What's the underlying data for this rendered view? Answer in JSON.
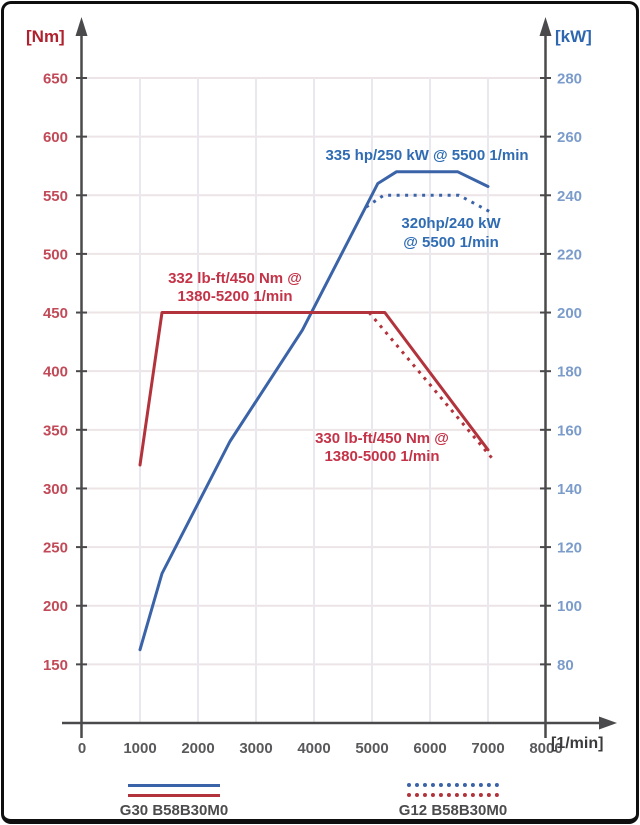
{
  "chart_data": {
    "type": "line",
    "title": "",
    "x_axis": {
      "label": "[1/min]",
      "min": 0,
      "max": 8000,
      "ticks": [
        0,
        1000,
        2000,
        3000,
        4000,
        5000,
        6000,
        7000,
        8000
      ]
    },
    "y_left": {
      "label": "[Nm]",
      "min": 100,
      "max": 650,
      "ticks": [
        650,
        600,
        550,
        500,
        450,
        400,
        350,
        300,
        250,
        200,
        150
      ]
    },
    "y_right": {
      "label": "[kW]",
      "min": 60,
      "max": 280,
      "ticks": [
        280,
        260,
        240,
        220,
        200,
        180,
        160,
        140,
        120,
        100,
        80
      ]
    },
    "grid": true,
    "legend_position": "bottom",
    "series": [
      {
        "name": "G30 B58B30M0 power (kW)",
        "axis": "right",
        "line": "solid",
        "color": "#3a63a8",
        "points": [
          [
            1000,
            85
          ],
          [
            1380,
            111
          ],
          [
            2550,
            156
          ],
          [
            3800,
            194
          ],
          [
            5100,
            244
          ],
          [
            5420,
            248
          ],
          [
            6480,
            248
          ],
          [
            7000,
            243
          ]
        ]
      },
      {
        "name": "G12 B58B30M0 power (kW)",
        "axis": "right",
        "line": "dashed",
        "color": "#3a63a8",
        "points": [
          [
            4900,
            236
          ],
          [
            5200,
            240
          ],
          [
            6500,
            240
          ],
          [
            7070,
            234
          ]
        ]
      },
      {
        "name": "G30 B58B30M0 torque (Nm)",
        "axis": "left",
        "line": "solid",
        "color": "#b2333c",
        "points": [
          [
            1000,
            320
          ],
          [
            1380,
            450
          ],
          [
            5220,
            450
          ],
          [
            7000,
            333
          ]
        ]
      },
      {
        "name": "G12 B58B30M0 torque (Nm)",
        "axis": "left",
        "line": "dashed",
        "color": "#b2333c",
        "points": [
          [
            4950,
            450
          ],
          [
            7100,
            324
          ]
        ]
      }
    ],
    "annotations": [
      {
        "lines": [
          "335 hp/250 kW @ 5500 1/min"
        ],
        "color": "#2f6cb3"
      },
      {
        "lines": [
          "320hp/240 kW",
          "@ 5500 1/min"
        ],
        "color": "#2f6cb3"
      },
      {
        "lines": [
          "332 lb-ft/450 Nm @",
          "1380-5200 1/min"
        ],
        "color": "#c43347"
      },
      {
        "lines": [
          "330 lb-ft/450 Nm @",
          "1380-5000 1/min"
        ],
        "color": "#c43347"
      }
    ],
    "legend": [
      {
        "label": "G30 B58B30M0",
        "line": "solid"
      },
      {
        "label": "G12 B58B30M0",
        "line": "dashed"
      }
    ],
    "colors": {
      "power_line": "#3a63a8",
      "torque_line": "#b2333c",
      "left_tick_text": "#c24a58",
      "right_tick_text": "#7b9ccb",
      "x_tick_text": "#59595b",
      "axis": "#4a4a4c",
      "grid_h": "#ece4e6",
      "grid_v": "#e9e8ee",
      "nm_label": "#b0212e",
      "kw_label": "#2f66b0",
      "xunit_label": "#3b3b3d",
      "legend_text": "#4c4c4e"
    }
  }
}
